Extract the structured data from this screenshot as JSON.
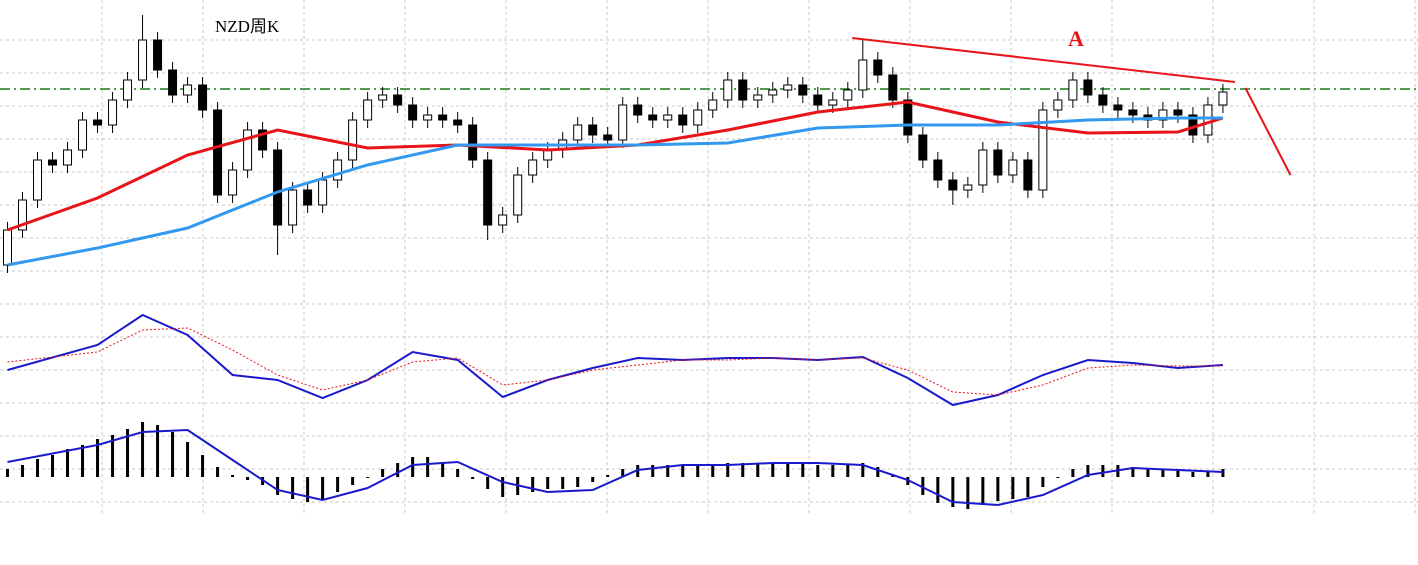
{
  "chart_data": [
    {
      "type": "candlestick",
      "title": "NZD周K",
      "annotation": "A",
      "xlim": [
        -0.5,
        94
      ],
      "ylim": [
        0,
        300
      ],
      "up_color": "#ffffff",
      "down_color": "#000000",
      "x": [
        0,
        1,
        2,
        3,
        4,
        5,
        6,
        7,
        8,
        9,
        10,
        11,
        12,
        13,
        14,
        15,
        16,
        17,
        18,
        19,
        20,
        21,
        22,
        23,
        24,
        25,
        26,
        27,
        28,
        29,
        30,
        31,
        32,
        33,
        34,
        35,
        36,
        37,
        38,
        39,
        40,
        41,
        42,
        43,
        44,
        45,
        46,
        47,
        48,
        49,
        50,
        51,
        52,
        53,
        54,
        55,
        56,
        57,
        58,
        59,
        60,
        61,
        62,
        63,
        64,
        65,
        66,
        67,
        68,
        69,
        70,
        71,
        72,
        73,
        74,
        75,
        76,
        77,
        78,
        79,
        80,
        81
      ],
      "open": [
        35,
        70,
        100,
        140,
        135,
        150,
        180,
        175,
        200,
        220,
        260,
        230,
        205,
        215,
        190,
        105,
        130,
        170,
        150,
        75,
        110,
        95,
        120,
        140,
        180,
        200,
        205,
        195,
        180,
        185,
        180,
        175,
        140,
        75,
        85,
        125,
        140,
        150,
        160,
        175,
        165,
        160,
        195,
        185,
        180,
        185,
        175,
        190,
        200,
        220,
        200,
        205,
        210,
        215,
        205,
        195,
        200,
        210,
        240,
        225,
        200,
        165,
        140,
        120,
        110,
        115,
        150,
        125,
        140,
        110,
        190,
        200,
        220,
        205,
        195,
        190,
        185,
        180,
        190,
        185,
        165,
        195
      ],
      "high": [
        78,
        108,
        148,
        148,
        158,
        188,
        188,
        208,
        228,
        285,
        268,
        238,
        223,
        223,
        198,
        138,
        178,
        178,
        158,
        118,
        118,
        128,
        148,
        188,
        208,
        213,
        213,
        203,
        193,
        193,
        188,
        183,
        148,
        93,
        133,
        148,
        158,
        168,
        183,
        183,
        173,
        203,
        203,
        193,
        193,
        193,
        198,
        208,
        228,
        228,
        213,
        218,
        223,
        223,
        213,
        208,
        218,
        260,
        248,
        233,
        208,
        173,
        148,
        128,
        123,
        158,
        158,
        148,
        148,
        198,
        208,
        228,
        228,
        213,
        203,
        198,
        193,
        198,
        198,
        193,
        203,
        216
      ],
      "low": [
        27,
        62,
        92,
        127,
        127,
        142,
        167,
        167,
        192,
        212,
        222,
        197,
        197,
        182,
        97,
        97,
        122,
        142,
        45,
        67,
        87,
        87,
        112,
        132,
        172,
        192,
        187,
        172,
        172,
        172,
        167,
        132,
        60,
        67,
        77,
        117,
        132,
        142,
        152,
        157,
        152,
        152,
        177,
        172,
        172,
        167,
        167,
        182,
        192,
        192,
        192,
        197,
        202,
        197,
        187,
        187,
        192,
        202,
        217,
        192,
        157,
        132,
        112,
        95,
        102,
        107,
        117,
        117,
        102,
        102,
        182,
        192,
        197,
        187,
        182,
        177,
        172,
        172,
        177,
        157,
        157,
        187
      ],
      "close": [
        70,
        100,
        140,
        135,
        150,
        180,
        175,
        200,
        220,
        260,
        230,
        205,
        215,
        190,
        105,
        130,
        170,
        150,
        75,
        110,
        95,
        120,
        140,
        180,
        200,
        205,
        195,
        180,
        185,
        180,
        175,
        140,
        75,
        85,
        125,
        140,
        150,
        160,
        175,
        165,
        160,
        195,
        185,
        180,
        185,
        175,
        190,
        200,
        220,
        200,
        205,
        210,
        215,
        205,
        195,
        200,
        210,
        240,
        225,
        200,
        165,
        140,
        120,
        110,
        115,
        150,
        125,
        140,
        110,
        190,
        200,
        220,
        205,
        195,
        190,
        185,
        180,
        190,
        185,
        165,
        195,
        208
      ],
      "series": [
        {
          "color": "#e8141a",
          "x": [
            0,
            6,
            12,
            18,
            24,
            30,
            36,
            42,
            48,
            54,
            60,
            66,
            72,
            78,
            81
          ],
          "values": [
            70,
            102,
            145,
            170,
            152,
            155,
            150,
            155,
            170,
            188,
            198,
            178,
            167,
            168,
            182
          ]
        },
        {
          "color": "#3399ee",
          "x": [
            0,
            6,
            12,
            18,
            24,
            30,
            36,
            42,
            48,
            54,
            60,
            66,
            72,
            78,
            81
          ],
          "values": [
            35,
            52,
            72,
            108,
            135,
            155,
            155,
            155,
            157,
            172,
            175,
            175,
            180,
            182,
            182
          ]
        }
      ],
      "level": {
        "value": 211,
        "color": "#1a7a1a"
      },
      "trendlines": [
        {
          "color": "#e8141a",
          "x": [
            56.3,
            81.8
          ],
          "values": [
            262,
            218
          ]
        },
        {
          "color": "#e8141a",
          "x": [
            82.5,
            85.5
          ],
          "values": [
            212,
            125
          ]
        }
      ]
    },
    {
      "type": "line",
      "xlim": [
        -0.5,
        94
      ],
      "ylim": [
        0,
        110
      ],
      "series": [
        {
          "color": "#1a1acc",
          "x": [
            0,
            6,
            9,
            12,
            15,
            18,
            21,
            24,
            27,
            30,
            33,
            36,
            39,
            42,
            45,
            48,
            51,
            54,
            57,
            60,
            63,
            66,
            69,
            72,
            75,
            78,
            81
          ],
          "values": [
            40,
            65,
            95,
            75,
            35,
            30,
            12,
            30,
            58,
            50,
            13,
            30,
            42,
            52,
            50,
            52,
            52,
            50,
            53,
            32,
            5,
            15,
            35,
            50,
            47,
            42,
            45
          ]
        },
        {
          "color": "#e8141a",
          "dashed": true,
          "x": [
            0,
            6,
            9,
            12,
            15,
            18,
            21,
            24,
            27,
            30,
            33,
            36,
            39,
            42,
            45,
            48,
            51,
            54,
            57,
            60,
            63,
            66,
            69,
            72,
            75,
            78,
            81
          ],
          "values": [
            48,
            58,
            80,
            82,
            60,
            35,
            20,
            30,
            48,
            52,
            25,
            30,
            40,
            45,
            50,
            50,
            52,
            50,
            52,
            40,
            18,
            15,
            25,
            42,
            45,
            44,
            44
          ]
        }
      ]
    },
    {
      "type": "macd",
      "xlim": [
        -0.5,
        94
      ],
      "ylim": [
        -40,
        65
      ],
      "bar_color": "#000000",
      "x": [
        0,
        1,
        2,
        3,
        4,
        5,
        6,
        7,
        8,
        9,
        10,
        11,
        12,
        13,
        14,
        15,
        16,
        17,
        18,
        19,
        20,
        21,
        22,
        23,
        24,
        25,
        26,
        27,
        28,
        29,
        30,
        31,
        32,
        33,
        34,
        35,
        36,
        37,
        38,
        39,
        40,
        41,
        42,
        43,
        44,
        45,
        46,
        47,
        48,
        49,
        50,
        51,
        52,
        53,
        54,
        55,
        56,
        57,
        58,
        59,
        60,
        61,
        62,
        63,
        64,
        65,
        66,
        67,
        68,
        69,
        70,
        71,
        72,
        73,
        74,
        75,
        76,
        77,
        78,
        79,
        80,
        81
      ],
      "values": [
        8,
        12,
        18,
        22,
        28,
        32,
        38,
        42,
        48,
        55,
        52,
        45,
        35,
        22,
        10,
        2,
        -3,
        -8,
        -18,
        -22,
        -25,
        -22,
        -15,
        -8,
        0,
        8,
        14,
        20,
        20,
        15,
        8,
        -2,
        -12,
        -20,
        -18,
        -15,
        -12,
        -12,
        -10,
        -5,
        2,
        8,
        12,
        12,
        12,
        12,
        12,
        13,
        14,
        14,
        13,
        14,
        15,
        14,
        12,
        12,
        12,
        14,
        10,
        2,
        -8,
        -18,
        -26,
        -30,
        -32,
        -28,
        -24,
        -22,
        -20,
        -10,
        0,
        8,
        12,
        12,
        12,
        10,
        8,
        8,
        6,
        5,
        6,
        8
      ],
      "series": [
        {
          "color": "#1a1acc",
          "x": [
            0,
            6,
            9,
            12,
            15,
            18,
            21,
            24,
            27,
            30,
            33,
            36,
            39,
            42,
            45,
            48,
            51,
            54,
            57,
            60,
            63,
            66,
            69,
            72,
            75,
            78,
            81
          ],
          "values": [
            15,
            32,
            45,
            47,
            17,
            -13,
            -23,
            -11,
            12,
            15,
            -5,
            -15,
            -13,
            7,
            12,
            12,
            14,
            14,
            12,
            -3,
            -25,
            -28,
            -18,
            2,
            9,
            7,
            5
          ]
        }
      ]
    }
  ]
}
